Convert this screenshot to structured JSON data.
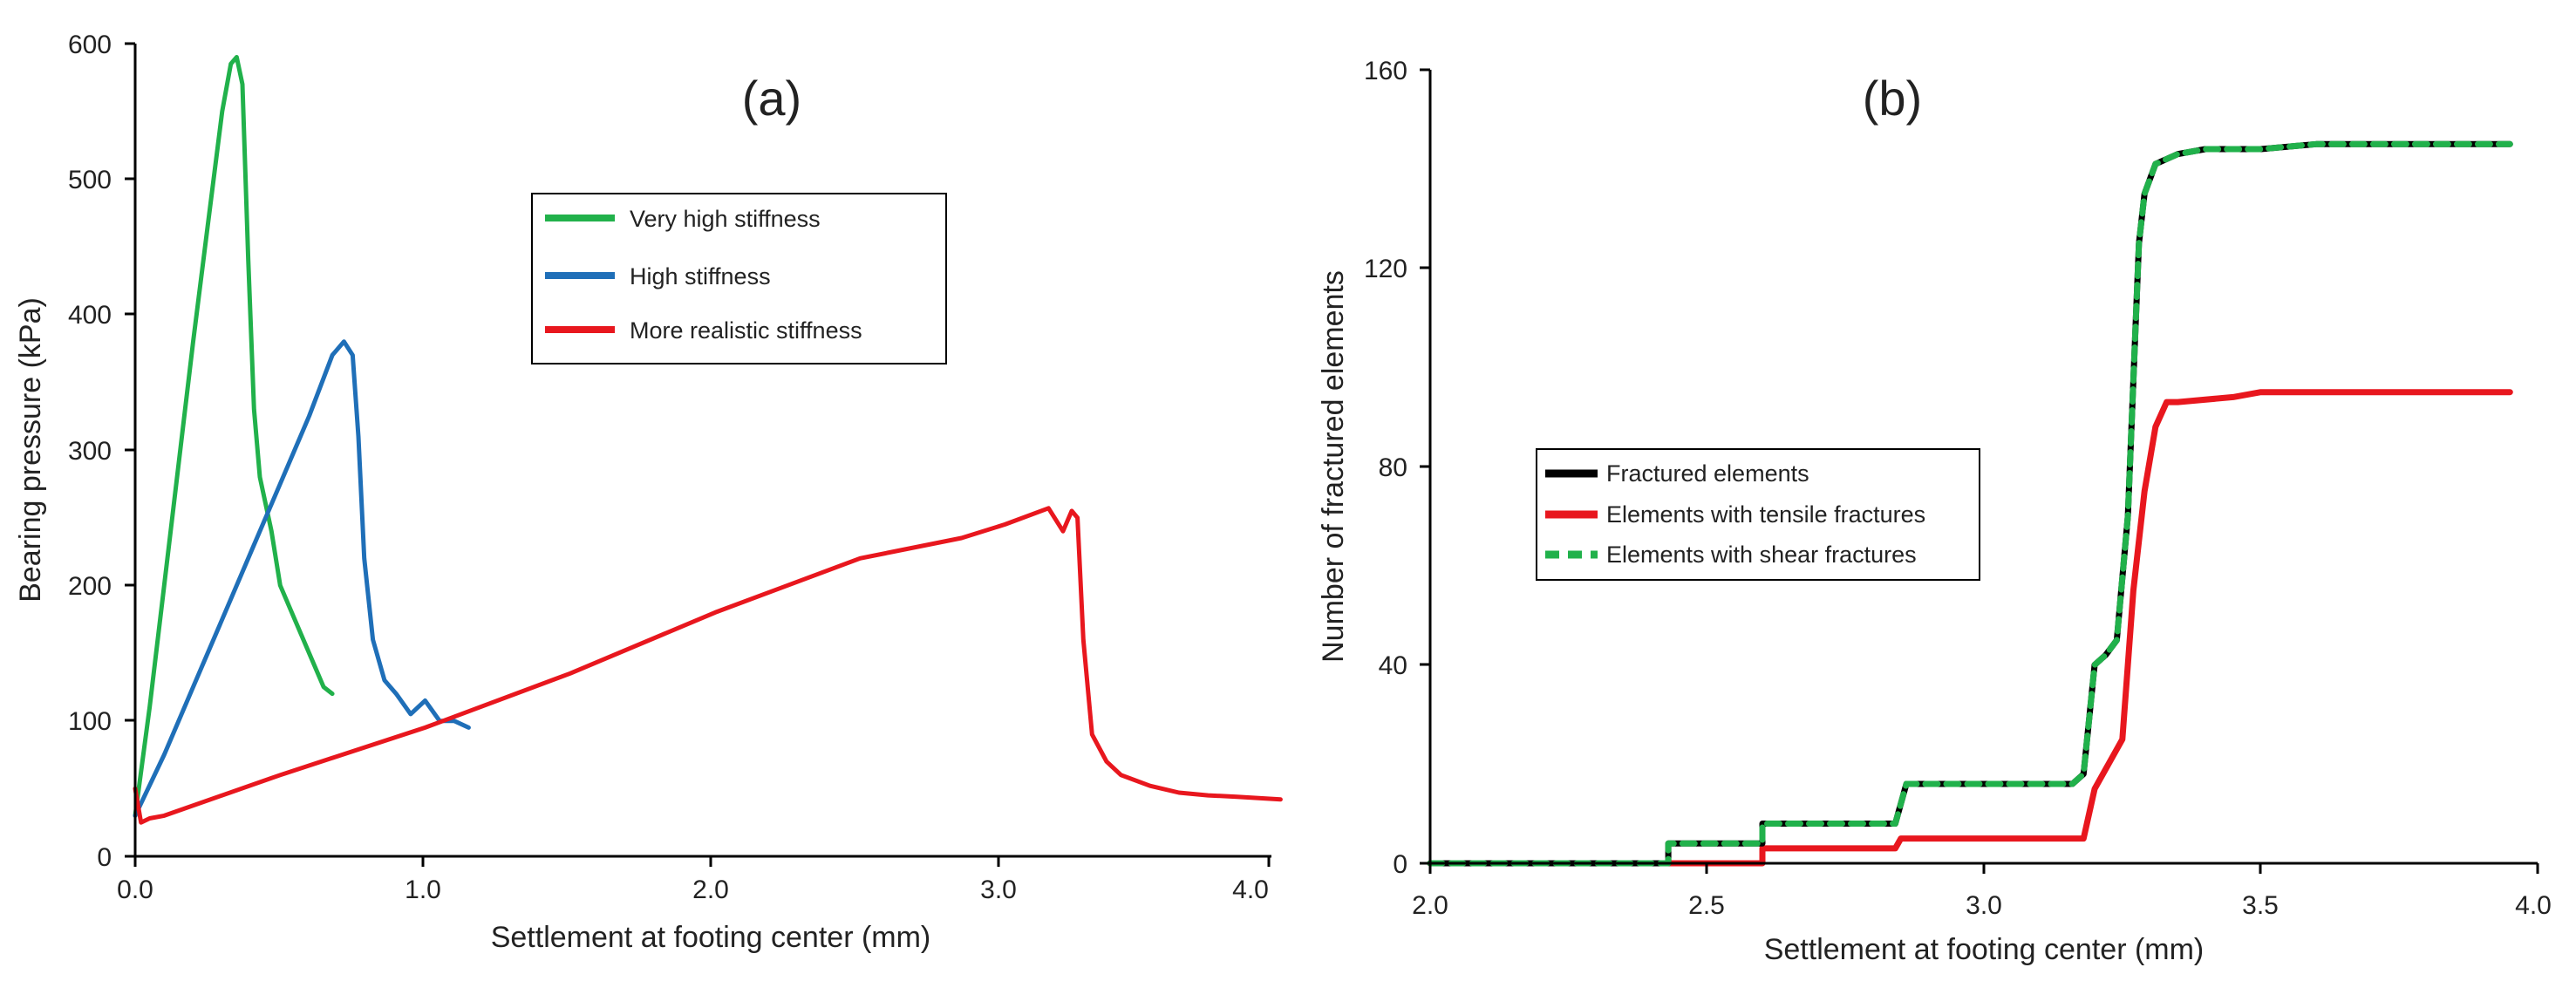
{
  "chart_data": [
    {
      "type": "line",
      "panel_label": "(a)",
      "xlabel": "Settlement at footing center (mm)",
      "ylabel": "Bearing pressure (kPa)",
      "xlim": [
        0,
        4.0
      ],
      "ylim": [
        0,
        600
      ],
      "xticks": [
        "0.0",
        "1.0",
        "2.0",
        "3.0",
        "4.0"
      ],
      "yticks": [
        "0",
        "100",
        "200",
        "300",
        "400",
        "500",
        "600"
      ],
      "legend_position": "upper-middle",
      "series": [
        {
          "name": "Very high stiffness",
          "color": "#21b14b",
          "style": "solid",
          "x": [
            0,
            0.05,
            0.1,
            0.15,
            0.2,
            0.25,
            0.3,
            0.33,
            0.35,
            0.37,
            0.39,
            0.41,
            0.43,
            0.47,
            0.5,
            0.55,
            0.6,
            0.65,
            0.68
          ],
          "y": [
            30,
            110,
            200,
            290,
            380,
            465,
            550,
            585,
            590,
            570,
            440,
            330,
            280,
            240,
            200,
            175,
            150,
            125,
            120
          ]
        },
        {
          "name": "High stiffness",
          "color": "#1f6fb8",
          "style": "solid",
          "x": [
            0,
            0.1,
            0.2,
            0.3,
            0.4,
            0.5,
            0.6,
            0.68,
            0.72,
            0.75,
            0.77,
            0.79,
            0.82,
            0.86,
            0.9,
            0.95,
            1.0,
            1.05,
            1.1,
            1.15
          ],
          "y": [
            30,
            75,
            125,
            175,
            225,
            275,
            325,
            370,
            380,
            370,
            310,
            220,
            160,
            130,
            120,
            105,
            115,
            100,
            100,
            95
          ]
        },
        {
          "name": "More realistic stiffness",
          "color": "#e8171e",
          "style": "solid",
          "x": [
            0,
            0.02,
            0.05,
            0.1,
            0.5,
            1.0,
            1.5,
            2.0,
            2.5,
            2.85,
            3.0,
            3.15,
            3.2,
            3.23,
            3.25,
            3.27,
            3.3,
            3.35,
            3.4,
            3.5,
            3.6,
            3.7,
            3.8,
            3.95
          ],
          "y": [
            50,
            25,
            28,
            30,
            60,
            95,
            135,
            180,
            220,
            235,
            245,
            257,
            240,
            255,
            250,
            160,
            90,
            70,
            60,
            52,
            47,
            45,
            44,
            42
          ]
        }
      ]
    },
    {
      "type": "line",
      "panel_label": "(b)",
      "xlabel": "Settlement at footing center (mm)",
      "ylabel": "Number of fractured elements",
      "xlim": [
        2.0,
        4.0
      ],
      "ylim": [
        0,
        160
      ],
      "xticks": [
        "2.0",
        "2.5",
        "3.0",
        "3.5",
        "4.0"
      ],
      "yticks": [
        "0",
        "40",
        "80",
        "120",
        "160"
      ],
      "legend_position": "center-left",
      "series": [
        {
          "name": "Fractured elements",
          "color": "#000000",
          "style": "solid",
          "x": [
            2.0,
            2.43,
            2.43,
            2.6,
            2.6,
            2.84,
            2.86,
            3.16,
            3.18,
            3.2,
            3.22,
            3.24,
            3.26,
            3.28,
            3.29,
            3.31,
            3.35,
            3.4,
            3.5,
            3.6,
            3.7,
            3.95
          ],
          "y": [
            0,
            0,
            4,
            4,
            8,
            8,
            16,
            16,
            18,
            40,
            42,
            45,
            70,
            125,
            135,
            141,
            143,
            144,
            144,
            145,
            145,
            145
          ]
        },
        {
          "name": "Elements with tensile fractures",
          "color": "#e8171e",
          "style": "solid",
          "x": [
            2.0,
            2.6,
            2.6,
            2.84,
            2.85,
            3.18,
            3.2,
            3.25,
            3.27,
            3.29,
            3.31,
            3.33,
            3.35,
            3.45,
            3.5,
            3.95
          ],
          "y": [
            0,
            0,
            3,
            3,
            5,
            5,
            15,
            25,
            55,
            75,
            88,
            93,
            93,
            94,
            95,
            95
          ]
        },
        {
          "name": "Elements with shear fractures",
          "color": "#21b14b",
          "style": "dashed",
          "x": [
            2.0,
            2.43,
            2.43,
            2.6,
            2.6,
            2.84,
            2.86,
            3.16,
            3.18,
            3.2,
            3.22,
            3.24,
            3.26,
            3.28,
            3.29,
            3.31,
            3.35,
            3.4,
            3.5,
            3.6,
            3.7,
            3.95
          ],
          "y": [
            0,
            0,
            4,
            4,
            8,
            8,
            16,
            16,
            18,
            40,
            42,
            45,
            70,
            125,
            135,
            141,
            143,
            144,
            144,
            145,
            145,
            145
          ]
        }
      ]
    }
  ]
}
